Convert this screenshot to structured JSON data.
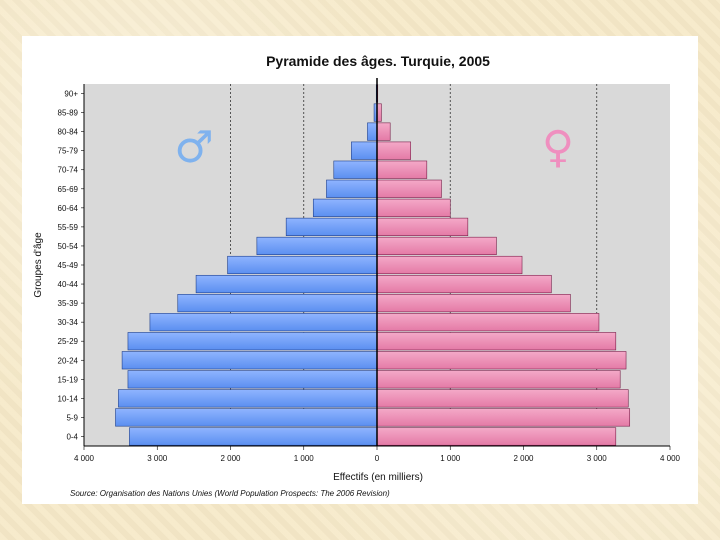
{
  "chart_data": {
    "type": "bar",
    "title": "Pyramide des âges. Turquie, 2005",
    "xlabel": "Effectifs (en milliers)",
    "ylabel": "Groupes d'âge",
    "source": "Source: Organisation des Nations Unies (World Population Prospects: The 2006 Revision)",
    "xlim": [
      -4000,
      4000
    ],
    "x_ticks": [
      -4000,
      -3000,
      -2000,
      -1000,
      0,
      1000,
      2000,
      3000,
      4000
    ],
    "x_tick_labels": [
      "4 000",
      "3 000",
      "2 000",
      "1 000",
      "0",
      "1 000",
      "2 000",
      "3 000",
      "4 000"
    ],
    "gridlines": [
      -2000,
      -1000,
      1000,
      3000
    ],
    "categories": [
      "0-4",
      "5-9",
      "10-14",
      "15-19",
      "20-24",
      "25-29",
      "30-34",
      "35-39",
      "40-44",
      "45-49",
      "50-54",
      "55-59",
      "60-64",
      "65-69",
      "70-74",
      "75-79",
      "80-84",
      "85-89",
      "90+"
    ],
    "series": [
      {
        "name": "Hommes",
        "symbol": "♂",
        "color": "#5b8ff0",
        "values": [
          3380,
          3570,
          3530,
          3400,
          3480,
          3400,
          3100,
          2720,
          2470,
          2040,
          1640,
          1240,
          870,
          690,
          590,
          350,
          130,
          40,
          10
        ]
      },
      {
        "name": "Femmes",
        "symbol": "♀",
        "color": "#e47aa6",
        "values": [
          3260,
          3450,
          3430,
          3320,
          3400,
          3260,
          3030,
          2640,
          2380,
          1980,
          1630,
          1240,
          1000,
          880,
          680,
          460,
          180,
          60,
          10
        ]
      }
    ]
  }
}
